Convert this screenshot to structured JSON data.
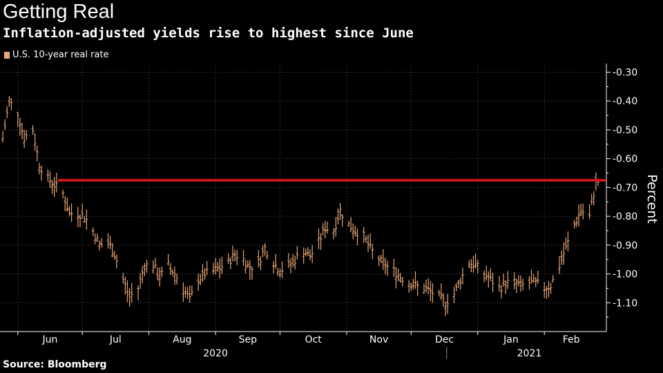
{
  "title": "Getting Real",
  "subtitle": "Inflation-adjusted yields rise to highest since June",
  "source": "Source: Bloomberg",
  "colors": {
    "background": "#000000",
    "series": "#e8a878",
    "reference_line": "#e01818",
    "grid": "#555555",
    "text": "#ffffff"
  },
  "chart_data": {
    "type": "line",
    "title": "Getting Real",
    "subtitle": "Inflation-adjusted yields rise to highest since June",
    "ylabel": "Percent",
    "xlabel": "",
    "ylim": [
      -1.2,
      -0.27
    ],
    "y_ticks": [
      -0.3,
      -0.4,
      -0.5,
      -0.6,
      -0.7,
      -0.8,
      -0.9,
      -1.0,
      -1.1
    ],
    "y_tick_labels": [
      "-0.30",
      "-0.40",
      "-0.50",
      "-0.60",
      "-0.70",
      "-0.80",
      "-0.90",
      "-1.00",
      "-1.10"
    ],
    "y_axis_side": "right",
    "y_inverted": true,
    "x_start": "2020-05-25",
    "x_end": "2021-02-26",
    "x_month_labels": [
      "Jun",
      "Jul",
      "Aug",
      "Sep",
      "Oct",
      "Nov",
      "Dec",
      "Jan",
      "Feb"
    ],
    "x_month_dates": [
      "2020-06-01",
      "2020-07-01",
      "2020-08-01",
      "2020-09-01",
      "2020-10-01",
      "2020-11-01",
      "2020-12-01",
      "2021-01-01",
      "2021-02-01"
    ],
    "x_year_labels": [
      {
        "label": "2020",
        "center": "2020-09-01"
      },
      {
        "label": "2021",
        "center": "2021-01-25"
      }
    ],
    "grid": true,
    "legend_position": "top-left",
    "reference_line": -0.675,
    "series": [
      {
        "name": "U.S. 10-year real rate",
        "style": "ohlc-bars",
        "x": [
          "2020-05-25",
          "2020-05-28",
          "2020-06-01",
          "2020-06-04",
          "2020-06-08",
          "2020-06-11",
          "2020-06-15",
          "2020-06-18",
          "2020-06-22",
          "2020-06-25",
          "2020-06-29",
          "2020-07-02",
          "2020-07-06",
          "2020-07-09",
          "2020-07-13",
          "2020-07-16",
          "2020-07-20",
          "2020-07-23",
          "2020-07-27",
          "2020-07-30",
          "2020-08-03",
          "2020-08-06",
          "2020-08-10",
          "2020-08-13",
          "2020-08-17",
          "2020-08-20",
          "2020-08-24",
          "2020-08-27",
          "2020-08-31",
          "2020-09-03",
          "2020-09-07",
          "2020-09-10",
          "2020-09-14",
          "2020-09-17",
          "2020-09-21",
          "2020-09-24",
          "2020-09-28",
          "2020-10-01",
          "2020-10-05",
          "2020-10-08",
          "2020-10-12",
          "2020-10-15",
          "2020-10-19",
          "2020-10-22",
          "2020-10-26",
          "2020-10-29",
          "2020-11-02",
          "2020-11-05",
          "2020-11-09",
          "2020-11-12",
          "2020-11-16",
          "2020-11-19",
          "2020-11-23",
          "2020-11-26",
          "2020-11-30",
          "2020-12-03",
          "2020-12-07",
          "2020-12-10",
          "2020-12-14",
          "2020-12-17",
          "2020-12-21",
          "2020-12-24",
          "2020-12-28",
          "2020-12-31",
          "2021-01-04",
          "2021-01-07",
          "2021-01-11",
          "2021-01-14",
          "2021-01-18",
          "2021-01-21",
          "2021-01-25",
          "2021-01-28",
          "2021-02-01",
          "2021-02-04",
          "2021-02-08",
          "2021-02-11",
          "2021-02-15",
          "2021-02-18",
          "2021-02-22",
          "2021-02-25"
        ],
        "values": [
          -0.53,
          -0.4,
          -0.44,
          -0.53,
          -0.5,
          -0.62,
          -0.67,
          -0.69,
          -0.72,
          -0.79,
          -0.79,
          -0.8,
          -0.85,
          -0.9,
          -0.89,
          -0.93,
          -1.02,
          -1.08,
          -1.05,
          -0.97,
          -0.97,
          -1.01,
          -0.97,
          -1.0,
          -1.05,
          -1.09,
          -1.02,
          -1.0,
          -0.99,
          -0.98,
          -0.96,
          -0.93,
          -0.95,
          -0.98,
          -0.96,
          -0.91,
          -0.96,
          -0.99,
          -0.97,
          -0.95,
          -0.92,
          -0.94,
          -0.89,
          -0.84,
          -0.85,
          -0.78,
          -0.83,
          -0.85,
          -0.87,
          -0.91,
          -0.95,
          -0.97,
          -0.99,
          -1.01,
          -1.03,
          -1.04,
          -1.05,
          -1.06,
          -1.08,
          -1.1,
          -1.07,
          -1.02,
          -0.96,
          -0.97,
          -1.0,
          -1.02,
          -1.05,
          -1.03,
          -1.03,
          -1.04,
          -1.03,
          -1.03,
          -1.05,
          -1.04,
          -0.97,
          -0.91,
          -0.83,
          -0.78,
          -0.8,
          -0.68
        ]
      }
    ]
  }
}
